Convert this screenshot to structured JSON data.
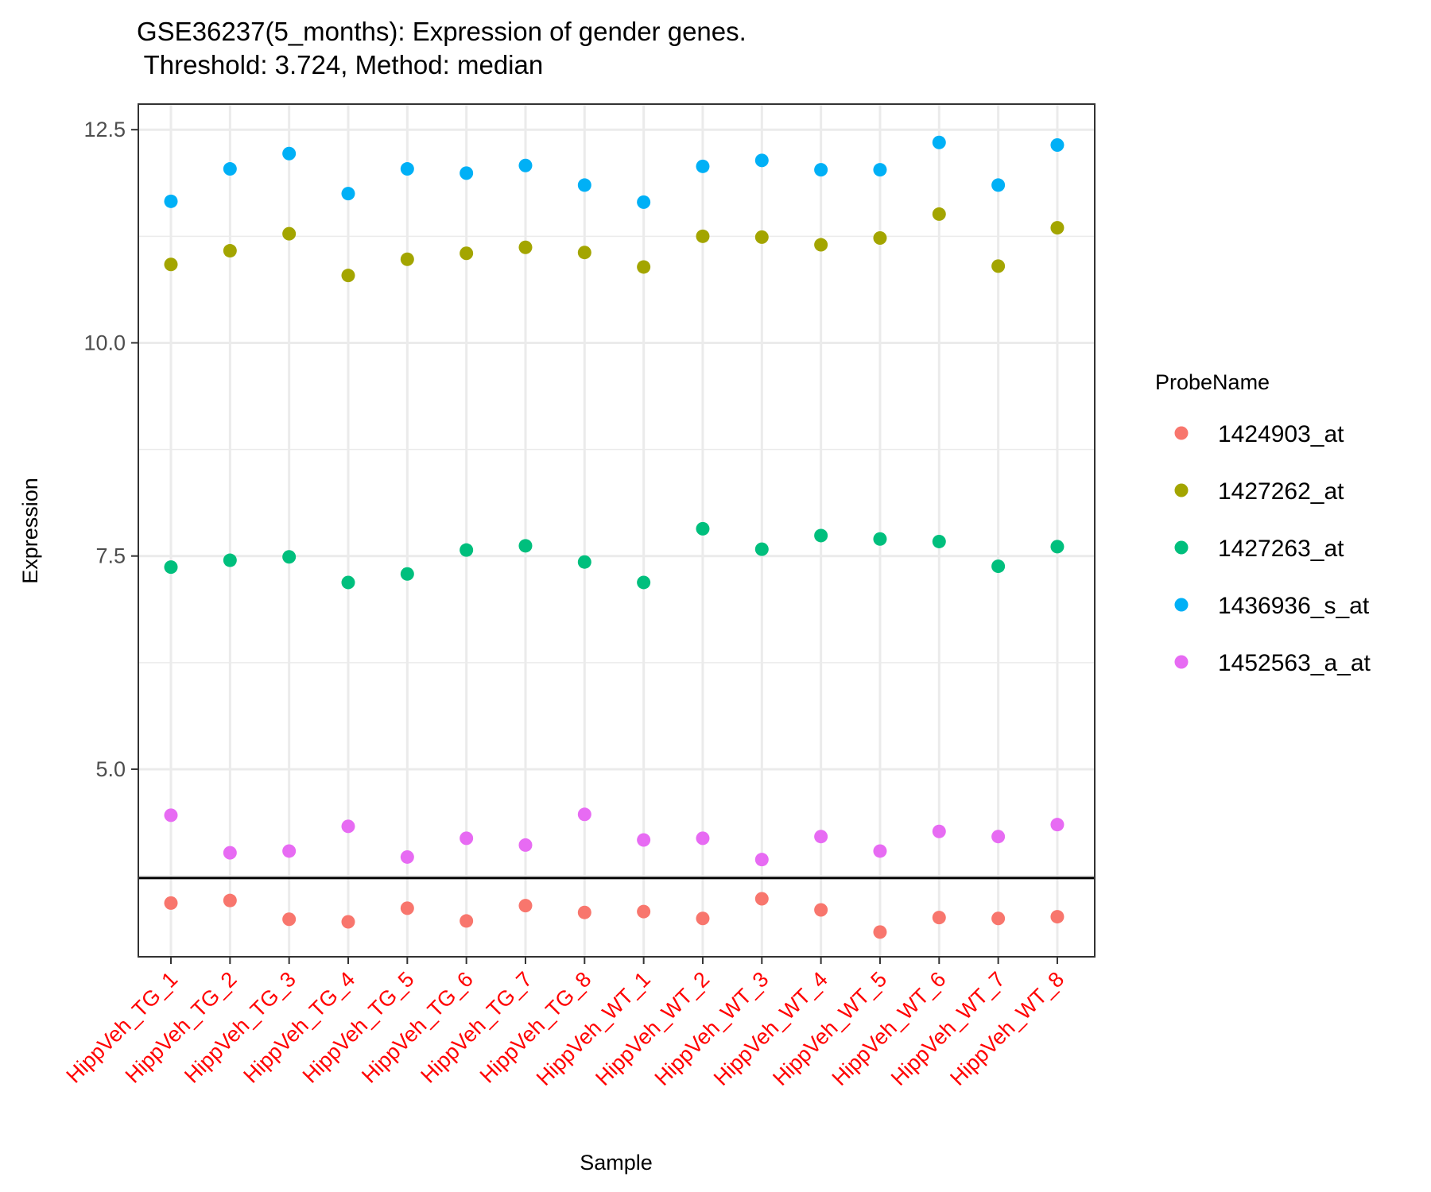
{
  "chart_data": {
    "type": "scatter",
    "title": "GSE36237(5_months): Expression of gender genes.",
    "subtitle": " Threshold: 3.724, Method: median",
    "xlabel": "Sample",
    "ylabel": "Expression",
    "ylim": [
      2.8,
      12.8
    ],
    "yticks": [
      5.0,
      7.5,
      10.0,
      12.5
    ],
    "ytick_labels": [
      "5.0",
      "7.5",
      "10.0",
      "12.5"
    ],
    "threshold": 3.724,
    "grid": true,
    "legend_title": "ProbeName",
    "legend_position": "right",
    "categories": [
      "HippVeh_TG_1",
      "HippVeh_TG_2",
      "HippVeh_TG_3",
      "HippVeh_TG_4",
      "HippVeh_TG_5",
      "HippVeh_TG_6",
      "HippVeh_TG_7",
      "HippVeh_TG_8",
      "HippVeh_WT_1",
      "HippVeh_WT_2",
      "HippVeh_WT_3",
      "HippVeh_WT_4",
      "HippVeh_WT_5",
      "HippVeh_WT_6",
      "HippVeh_WT_7",
      "HippVeh_WT_8"
    ],
    "tick_label_color": "#ff0000",
    "series": [
      {
        "name": "1424903_at",
        "color": "#F8766D",
        "values": [
          3.43,
          3.46,
          3.24,
          3.21,
          3.37,
          3.22,
          3.4,
          3.32,
          3.33,
          3.25,
          3.48,
          3.35,
          3.09,
          3.26,
          3.25,
          3.27
        ]
      },
      {
        "name": "1427262_at",
        "color": "#A3A500",
        "values": [
          10.92,
          11.08,
          11.28,
          10.79,
          10.98,
          11.05,
          11.12,
          11.06,
          10.89,
          11.25,
          11.24,
          11.15,
          11.23,
          11.51,
          10.9,
          11.35
        ]
      },
      {
        "name": "1427263_at",
        "color": "#00BF7D",
        "values": [
          7.37,
          7.45,
          7.49,
          7.19,
          7.29,
          7.57,
          7.62,
          7.43,
          7.19,
          7.82,
          7.58,
          7.74,
          7.7,
          7.67,
          7.38,
          7.61
        ]
      },
      {
        "name": "1436936_s_at",
        "color": "#00B0F6",
        "values": [
          11.66,
          12.04,
          12.22,
          11.75,
          12.04,
          11.99,
          12.08,
          11.85,
          11.65,
          12.07,
          12.14,
          12.03,
          12.03,
          12.35,
          11.85,
          12.32
        ]
      },
      {
        "name": "1452563_a_at",
        "color": "#E76BF3",
        "values": [
          4.46,
          4.02,
          4.04,
          4.33,
          3.97,
          4.19,
          4.11,
          4.47,
          4.17,
          4.19,
          3.94,
          4.21,
          4.04,
          4.27,
          4.21,
          4.35
        ]
      }
    ]
  }
}
